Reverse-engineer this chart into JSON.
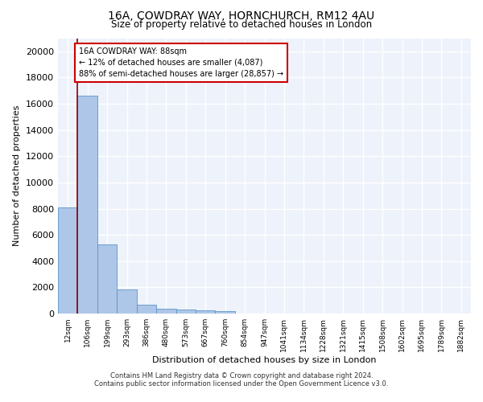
{
  "title_line1": "16A, COWDRAY WAY, HORNCHURCH, RM12 4AU",
  "title_line2": "Size of property relative to detached houses in London",
  "xlabel": "Distribution of detached houses by size in London",
  "ylabel": "Number of detached properties",
  "categories": [
    "12sqm",
    "106sqm",
    "199sqm",
    "293sqm",
    "386sqm",
    "480sqm",
    "573sqm",
    "667sqm",
    "760sqm",
    "854sqm",
    "947sqm",
    "1041sqm",
    "1134sqm",
    "1228sqm",
    "1321sqm",
    "1415sqm",
    "1508sqm",
    "1602sqm",
    "1695sqm",
    "1789sqm",
    "1882sqm"
  ],
  "bar_values": [
    8100,
    16600,
    5300,
    1850,
    700,
    350,
    280,
    230,
    200,
    0,
    0,
    0,
    0,
    0,
    0,
    0,
    0,
    0,
    0,
    0,
    0
  ],
  "bar_color": "#aec6e8",
  "bar_edge_color": "#5a96c8",
  "annotation_line1": "16A COWDRAY WAY: 88sqm",
  "annotation_line2": "← 12% of detached houses are smaller (4,087)",
  "annotation_line3": "88% of semi-detached houses are larger (28,857) →",
  "vline_color": "#880000",
  "background_color": "#eef2fb",
  "grid_color": "#ffffff",
  "ylim": [
    0,
    21000
  ],
  "yticks": [
    0,
    2000,
    4000,
    6000,
    8000,
    10000,
    12000,
    14000,
    16000,
    18000,
    20000
  ],
  "footer_line1": "Contains HM Land Registry data © Crown copyright and database right 2024.",
  "footer_line2": "Contains public sector information licensed under the Open Government Licence v3.0."
}
